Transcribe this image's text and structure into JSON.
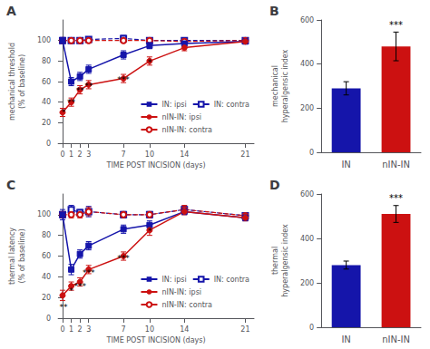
{
  "chart_data": [
    {
      "type": "line",
      "title": "A",
      "x": [
        0,
        1,
        2,
        3,
        7,
        10,
        14,
        21
      ],
      "series": [
        {
          "name": "IN: ipsi",
          "color": "#1515AA",
          "marker": "square",
          "line_style": "solid",
          "values": [
            100,
            60,
            65,
            72,
            86,
            95,
            97,
            99
          ],
          "errors": [
            3,
            4,
            4,
            4,
            4,
            3,
            2,
            2
          ]
        },
        {
          "name": "IN: contra",
          "color": "#1515AA",
          "marker": "open_square",
          "line_style": "dashed",
          "values": [
            100,
            100,
            100,
            101,
            102,
            100,
            100,
            100
          ],
          "errors": [
            2,
            2,
            2,
            2,
            3,
            2,
            2,
            2
          ]
        },
        {
          "name": "nIN-IN: ipsi",
          "color": "#CC1111",
          "marker": "circle",
          "line_style": "solid",
          "values": [
            30,
            40,
            52,
            57,
            63,
            80,
            93,
            99
          ],
          "errors": [
            4,
            4,
            4,
            4,
            4,
            4,
            3,
            2
          ]
        },
        {
          "name": "nIN-IN: contra",
          "color": "#CC1111",
          "marker": "open_circle",
          "line_style": "dashed",
          "values": [
            100,
            100,
            100,
            100,
            100,
            100,
            99,
            100
          ],
          "errors": [
            2,
            2,
            2,
            2,
            2,
            2,
            2,
            2
          ]
        }
      ],
      "ylabel": "mechanical threshold\n(% of baseline)",
      "xlabel": "TIME POST INCISION (days)",
      "annotations": [
        {
          "x": 0.1,
          "y": 26,
          "text": "*"
        },
        {
          "x": 1,
          "y": 36,
          "text": "**"
        },
        {
          "x": 2,
          "y": 47,
          "text": "**"
        },
        {
          "x": 3,
          "y": 52,
          "text": "**"
        },
        {
          "x": 7,
          "y": 58,
          "text": "***"
        },
        {
          "x": 10,
          "y": 75,
          "text": "*"
        }
      ],
      "xlim": [
        -0.5,
        22
      ],
      "xticks": [
        0,
        1,
        2,
        3,
        7,
        10,
        14,
        21
      ],
      "ylim": [
        0,
        120
      ],
      "yticks": [
        0,
        20,
        40,
        60,
        80,
        100
      ],
      "grid": false,
      "legend": "lower right"
    },
    {
      "type": "bar",
      "title": "B",
      "categories": [
        "IN",
        "nIN-IN"
      ],
      "values": [
        290,
        480
      ],
      "errors": [
        30,
        65
      ],
      "colors": [
        "#1515AA",
        "#CC1111"
      ],
      "ylabel": "mechanical\nhyperalgensic index",
      "annotations": [
        {
          "x": "nIN-IN",
          "y": 558,
          "text": "***"
        }
      ],
      "ylim": [
        0,
        600
      ],
      "yticks": [
        0,
        200,
        400,
        600
      ],
      "grid": false
    },
    {
      "type": "line",
      "title": "C",
      "x": [
        0,
        1,
        2,
        3,
        7,
        10,
        14,
        21
      ],
      "series": [
        {
          "name": "IN: ipsi",
          "color": "#1515AA",
          "marker": "square",
          "line_style": "solid",
          "values": [
            100,
            47,
            62,
            70,
            86,
            90,
            103,
            97
          ],
          "errors": [
            5,
            5,
            4,
            4,
            4,
            4,
            3,
            3
          ]
        },
        {
          "name": "IN: contra",
          "color": "#1515AA",
          "marker": "open_square",
          "line_style": "dashed",
          "values": [
            100,
            105,
            102,
            103,
            100,
            100,
            105,
            99
          ],
          "errors": [
            3,
            4,
            3,
            5,
            3,
            3,
            3,
            3
          ]
        },
        {
          "name": "nIN-IN: ipsi",
          "color": "#CC1111",
          "marker": "circle",
          "line_style": "solid",
          "values": [
            22,
            31,
            35,
            47,
            60,
            85,
            103,
            97
          ],
          "errors": [
            5,
            4,
            4,
            4,
            4,
            5,
            3,
            3
          ]
        },
        {
          "name": "nIN-IN: contra",
          "color": "#CC1111",
          "marker": "open_circle",
          "line_style": "dashed",
          "values": [
            100,
            100,
            100,
            103,
            100,
            100,
            105,
            99
          ],
          "errors": [
            3,
            3,
            3,
            4,
            3,
            3,
            4,
            3
          ]
        }
      ],
      "ylabel": "thermal latency\n(% of baseline)",
      "xlabel": "TIME POST INCISION (days)",
      "annotations": [
        {
          "x": 0.1,
          "y": 7,
          "text": "**"
        },
        {
          "x": 1,
          "y": 22,
          "text": "*"
        },
        {
          "x": 2,
          "y": 27,
          "text": "***"
        },
        {
          "x": 3,
          "y": 40,
          "text": "***"
        },
        {
          "x": 7,
          "y": 54,
          "text": "***"
        },
        {
          "x": 10,
          "y": 80,
          "text": "*"
        }
      ],
      "xlim": [
        -0.5,
        22
      ],
      "xticks": [
        0,
        1,
        2,
        3,
        7,
        10,
        14,
        21
      ],
      "ylim": [
        0,
        120
      ],
      "yticks": [
        0,
        20,
        40,
        60,
        80,
        100
      ],
      "grid": false,
      "legend": "lower right"
    },
    {
      "type": "bar",
      "title": "D",
      "categories": [
        "IN",
        "nIN-IN"
      ],
      "values": [
        280,
        510
      ],
      "errors": [
        18,
        38
      ],
      "colors": [
        "#1515AA",
        "#CC1111"
      ],
      "ylabel": "thermal\nhyperalgensic index",
      "annotations": [
        {
          "x": "nIN-IN",
          "y": 560,
          "text": "***"
        }
      ],
      "ylim": [
        0,
        600
      ],
      "yticks": [
        0,
        200,
        400,
        600
      ],
      "grid": false
    }
  ]
}
